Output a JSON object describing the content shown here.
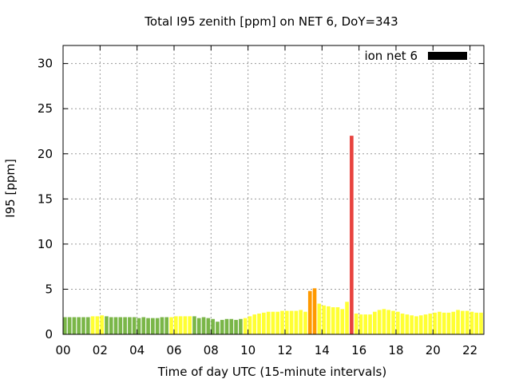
{
  "chart_data": {
    "type": "bar",
    "title": "Total I95 zenith [ppm] on NET 6, DoY=343",
    "xlabel": "Time of day UTC (15-minute intervals)",
    "ylabel": "I95 [ppm]",
    "xlim": [
      0,
      22.75
    ],
    "ylim": [
      0,
      32
    ],
    "x_ticks": [
      0,
      2,
      4,
      6,
      8,
      10,
      12,
      14,
      16,
      18,
      20,
      22
    ],
    "x_tick_labels": [
      "00",
      "02",
      "04",
      "06",
      "08",
      "10",
      "12",
      "14",
      "16",
      "18",
      "20",
      "22"
    ],
    "y_ticks": [
      0,
      5,
      10,
      15,
      20,
      25,
      30
    ],
    "y_tick_labels": [
      "0",
      "5",
      "10",
      "15",
      "20",
      "25",
      "30"
    ],
    "grid": true,
    "legend": {
      "label": "ion net 6",
      "color": "#000000",
      "placement": "top-right"
    },
    "bar_width_hours": 0.2,
    "series": [
      {
        "name": "ion net 6",
        "x": [
          0.0,
          0.25,
          0.5,
          0.75,
          1.0,
          1.25,
          1.5,
          1.75,
          2.0,
          2.25,
          2.5,
          2.75,
          3.0,
          3.25,
          3.5,
          3.75,
          4.0,
          4.25,
          4.5,
          4.75,
          5.0,
          5.25,
          5.5,
          5.75,
          6.0,
          6.25,
          6.5,
          6.75,
          7.0,
          7.25,
          7.5,
          7.75,
          8.0,
          8.25,
          8.5,
          8.75,
          9.0,
          9.25,
          9.5,
          9.75,
          10.0,
          10.25,
          10.5,
          10.75,
          11.0,
          11.25,
          11.5,
          11.75,
          12.0,
          12.25,
          12.5,
          12.75,
          13.0,
          13.25,
          13.5,
          13.75,
          14.0,
          14.25,
          14.5,
          14.75,
          15.0,
          15.25,
          15.5,
          15.75,
          16.0,
          16.25,
          16.5,
          16.75,
          17.0,
          17.25,
          17.5,
          17.75,
          18.0,
          18.25,
          18.5,
          18.75,
          19.0,
          19.25,
          19.5,
          19.75,
          20.0,
          20.25,
          20.5,
          20.75,
          21.0,
          21.25,
          21.5,
          21.75,
          22.0,
          22.25,
          22.5
        ],
        "values": [
          1.9,
          1.9,
          1.9,
          1.9,
          1.9,
          1.9,
          2.0,
          2.0,
          2.1,
          2.0,
          1.9,
          1.9,
          1.9,
          1.9,
          1.9,
          1.9,
          1.8,
          1.9,
          1.8,
          1.8,
          1.8,
          1.9,
          1.9,
          1.9,
          2.0,
          2.0,
          2.0,
          2.0,
          2.0,
          1.8,
          1.9,
          1.8,
          1.7,
          1.4,
          1.6,
          1.7,
          1.7,
          1.6,
          1.7,
          1.8,
          2.0,
          2.2,
          2.3,
          2.4,
          2.5,
          2.5,
          2.5,
          2.6,
          2.6,
          2.6,
          2.6,
          2.7,
          2.5,
          4.8,
          5.1,
          3.4,
          3.2,
          3.1,
          3.0,
          3.0,
          2.8,
          3.6,
          22.0,
          2.3,
          2.2,
          2.2,
          2.2,
          2.5,
          2.7,
          2.8,
          2.7,
          2.6,
          2.5,
          2.3,
          2.2,
          2.1,
          2.0,
          2.1,
          2.2,
          2.3,
          2.4,
          2.5,
          2.4,
          2.4,
          2.5,
          2.7,
          2.6,
          2.6,
          2.5,
          2.4,
          2.4
        ],
        "colors": [
          "#7ab648",
          "#7ab648",
          "#7ab648",
          "#7ab648",
          "#7ab648",
          "#7ab648",
          "#ffff33",
          "#ffff33",
          "#ffff33",
          "#7ab648",
          "#7ab648",
          "#7ab648",
          "#7ab648",
          "#7ab648",
          "#7ab648",
          "#7ab648",
          "#7ab648",
          "#7ab648",
          "#7ab648",
          "#7ab648",
          "#7ab648",
          "#7ab648",
          "#7ab648",
          "#ffff33",
          "#ffff33",
          "#ffff33",
          "#ffff33",
          "#ffff33",
          "#7ab648",
          "#7ab648",
          "#7ab648",
          "#7ab648",
          "#7ab648",
          "#7ab648",
          "#7ab648",
          "#7ab648",
          "#7ab648",
          "#7ab648",
          "#7ab648",
          "#ffff33",
          "#ffff33",
          "#ffff33",
          "#ffff33",
          "#ffff33",
          "#ffff33",
          "#ffff33",
          "#ffff33",
          "#ffff33",
          "#ffff33",
          "#ffff33",
          "#ffff33",
          "#ffff33",
          "#ffff33",
          "#ff9900",
          "#ff9900",
          "#ffff33",
          "#ffff33",
          "#ffff33",
          "#ffff33",
          "#ffff33",
          "#ffff33",
          "#ffff33",
          "#e8433f",
          "#ffff33",
          "#ffff33",
          "#ffff33",
          "#ffff33",
          "#ffff33",
          "#ffff33",
          "#ffff33",
          "#ffff33",
          "#ffff33",
          "#ffff33",
          "#ffff33",
          "#ffff33",
          "#ffff33",
          "#ffff33",
          "#ffff33",
          "#ffff33",
          "#ffff33",
          "#ffff33",
          "#ffff33",
          "#ffff33",
          "#ffff33",
          "#ffff33",
          "#ffff33",
          "#ffff33",
          "#ffff33",
          "#ffff33",
          "#ffff33",
          "#ffff33"
        ]
      }
    ]
  }
}
